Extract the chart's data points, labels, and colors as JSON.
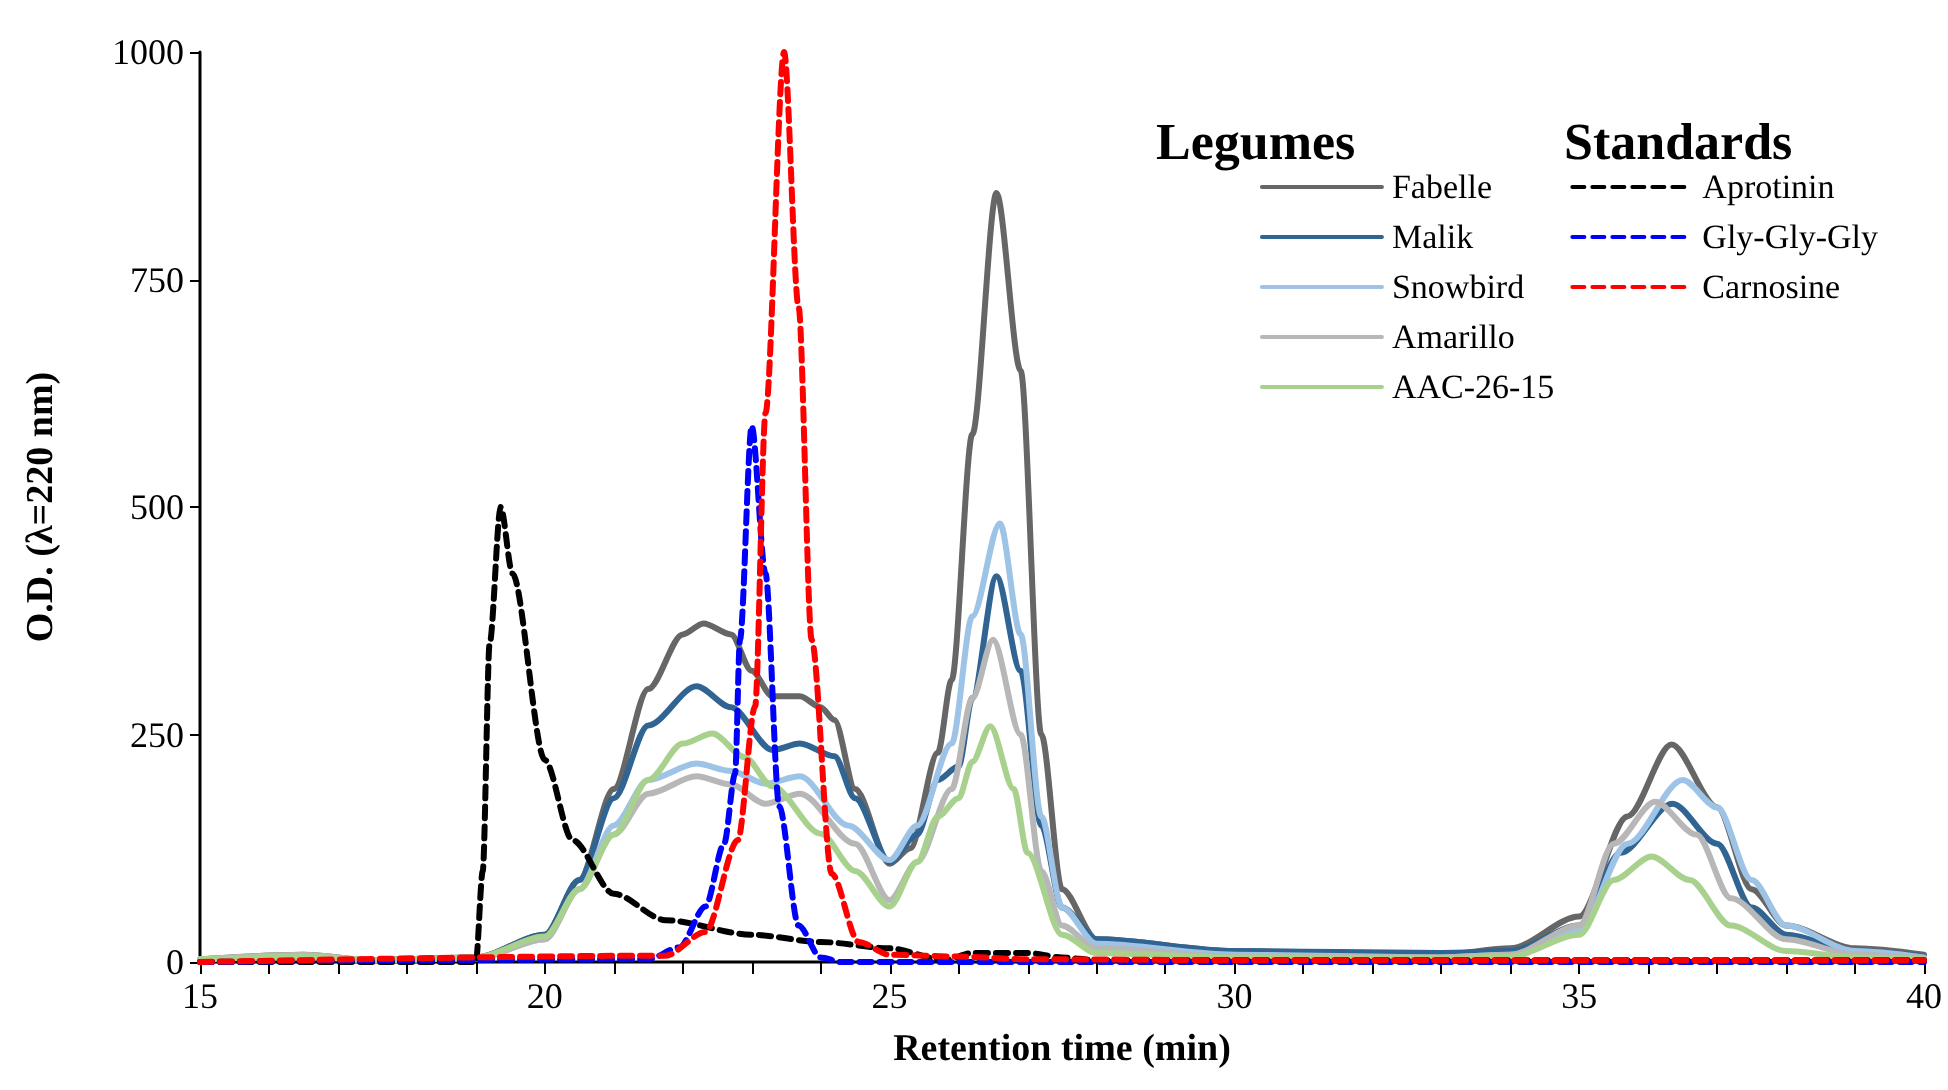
{
  "chart_data": {
    "type": "line",
    "xlabel": "Retention time (min)",
    "ylabel": "O.D. (λ=220 nm)",
    "legend_title": "Legumes",
    "annotations": [
      "Standards"
    ],
    "xlim": [
      15,
      40
    ],
    "ylim": [
      0,
      1000
    ],
    "xticks": [
      15,
      {
        "value": 16,
        "label": null
      },
      {
        "value": 17,
        "label": null
      },
      {
        "value": 18,
        "label": null
      },
      {
        "value": 19,
        "label": null
      },
      20,
      {
        "value": 21,
        "label": null
      },
      {
        "value": 22,
        "label": null
      },
      {
        "value": 23,
        "label": null
      },
      {
        "value": 24,
        "label": null
      },
      25,
      {
        "value": 26,
        "label": null
      },
      {
        "value": 27,
        "label": null
      },
      {
        "value": 28,
        "label": null
      },
      {
        "value": 29,
        "label": null
      },
      30,
      {
        "value": 31,
        "label": null
      },
      {
        "value": 32,
        "label": null
      },
      {
        "value": 33,
        "label": null
      },
      {
        "value": 34,
        "label": null
      },
      35,
      {
        "value": 36,
        "label": null
      },
      {
        "value": 37,
        "label": null
      },
      {
        "value": 38,
        "label": null
      },
      {
        "value": 39,
        "label": null
      },
      40
    ],
    "yticks": [
      0,
      250,
      500,
      750,
      1000
    ],
    "grid": false,
    "legend": "top right",
    "marker": "none",
    "series": [
      {
        "name": "Fabelle",
        "color": "#666666",
        "line_style": "solid",
        "x": [
          15,
          16.5,
          17.5,
          19,
          20,
          20.5,
          21,
          21.5,
          22,
          22.3,
          22.7,
          23,
          23.3,
          23.7,
          24,
          24.2,
          24.5,
          25,
          25.3,
          25.7,
          25.9,
          26.2,
          26.55,
          26.9,
          27.2,
          27.5,
          28,
          30,
          33,
          34,
          35,
          35.7,
          36.34,
          37,
          37.5,
          38,
          39,
          40
        ],
        "values": [
          3,
          8,
          2,
          5,
          30,
          90,
          190,
          300,
          360,
          372,
          360,
          320,
          292,
          292,
          280,
          266,
          190,
          108,
          125,
          230,
          310,
          580,
          845,
          650,
          250,
          80,
          25,
          12,
          8,
          15,
          50,
          160,
          239,
          170,
          80,
          40,
          15,
          8
        ]
      },
      {
        "name": "Malik",
        "color": "#2f6493",
        "line_style": "solid",
        "x": [
          15,
          16.5,
          17.5,
          19,
          20,
          20.5,
          21,
          21.5,
          22.2,
          22.7,
          23.3,
          23.7,
          24.2,
          24.5,
          25,
          25.4,
          25.7,
          26,
          26.2,
          26.55,
          26.9,
          27.2,
          27.5,
          28,
          30,
          33,
          34,
          35,
          35.6,
          36.35,
          37,
          37.5,
          38,
          39,
          40
        ],
        "values": [
          3,
          6,
          2,
          5,
          30,
          90,
          180,
          260,
          303,
          280,
          233,
          240,
          226,
          180,
          110,
          140,
          200,
          215,
          290,
          424,
          320,
          150,
          60,
          25,
          12,
          10,
          12,
          40,
          120,
          174,
          130,
          60,
          30,
          12,
          6
        ]
      },
      {
        "name": "Snowbird",
        "color": "#9dc3e6",
        "line_style": "solid",
        "x": [
          15,
          16.5,
          17.5,
          19,
          20,
          20.5,
          21,
          21.5,
          22.2,
          22.7,
          23.2,
          23.7,
          24.4,
          25,
          25.4,
          25.9,
          26.2,
          26.6,
          26.9,
          27.2,
          27.5,
          28,
          30,
          33,
          34,
          35,
          35.7,
          36.5,
          37,
          37.5,
          38,
          39,
          40
        ],
        "values": [
          3,
          6,
          2,
          4,
          25,
          80,
          150,
          200,
          218,
          210,
          196,
          204,
          150,
          112,
          150,
          240,
          380,
          482,
          360,
          160,
          60,
          20,
          8,
          5,
          8,
          35,
          130,
          200,
          170,
          90,
          40,
          12,
          5
        ]
      },
      {
        "name": "Amarillo",
        "color": "#b7b7b7",
        "line_style": "solid",
        "x": [
          15,
          16.5,
          17.5,
          19,
          20,
          20.5,
          21,
          21.5,
          22.2,
          22.7,
          23.2,
          23.7,
          24.5,
          25,
          25.4,
          25.9,
          26.2,
          26.5,
          26.9,
          27.2,
          27.5,
          28,
          30,
          33,
          34,
          35,
          35.5,
          36.1,
          36.7,
          37.2,
          38,
          39,
          40
        ],
        "values": [
          3,
          8,
          2,
          4,
          25,
          80,
          140,
          185,
          204,
          195,
          174,
          185,
          130,
          68,
          110,
          190,
          290,
          354,
          250,
          100,
          40,
          15,
          6,
          5,
          8,
          40,
          130,
          176,
          140,
          70,
          25,
          8,
          4
        ]
      },
      {
        "name": "AAC-26-15",
        "color": "#a9d18e",
        "line_style": "solid",
        "x": [
          15,
          16.5,
          17.5,
          19,
          20,
          20.5,
          21,
          21.5,
          22,
          22.43,
          22.9,
          23.3,
          24,
          24.5,
          25,
          25.4,
          25.7,
          26,
          26.2,
          26.46,
          26.8,
          27,
          27.5,
          28,
          30,
          33,
          34,
          35,
          35.5,
          36.05,
          36.6,
          37.2,
          38,
          39,
          40
        ],
        "values": [
          3,
          6,
          2,
          5,
          28,
          80,
          140,
          200,
          240,
          251,
          225,
          193,
          141,
          100,
          61,
          110,
          160,
          180,
          220,
          259,
          190,
          120,
          30,
          10,
          5,
          4,
          6,
          30,
          90,
          116,
          90,
          40,
          12,
          5,
          3
        ]
      },
      {
        "name": "Aprotinin",
        "color": "#000000",
        "line_style": "dashed",
        "x": [
          15,
          19,
          19.1,
          19.2,
          19.36,
          19.53,
          20,
          20.4,
          21,
          21.75,
          23,
          24,
          25,
          25.8,
          26.2,
          27,
          27.5,
          28,
          30,
          35,
          40
        ],
        "values": [
          0,
          0,
          100,
          350,
          500,
          427,
          222,
          134,
          75,
          46,
          30,
          22,
          15,
          2,
          10,
          10,
          5,
          2,
          2,
          2,
          2
        ]
      },
      {
        "name": "Gly-Gly-Gly",
        "color": "#0000ff",
        "line_style": "dashed",
        "x": [
          15,
          21.5,
          21.95,
          22.33,
          22.6,
          22.76,
          22.83,
          23,
          23.2,
          23.4,
          23.68,
          24,
          24.3,
          30,
          40
        ],
        "values": [
          0,
          3,
          16,
          61,
          130,
          207,
          354,
          589,
          427,
          171,
          40,
          5,
          0,
          0,
          0
        ]
      },
      {
        "name": "Carnosine",
        "color": "#ff0000",
        "line_style": "dashed",
        "x": [
          15,
          21.75,
          22.33,
          22.8,
          23.05,
          23.2,
          23.47,
          23.68,
          23.87,
          24.16,
          24.55,
          25,
          26,
          27,
          30,
          40
        ],
        "values": [
          0,
          7,
          33,
          134,
          281,
          603,
          1000,
          720,
          354,
          97,
          22,
          8,
          6,
          3,
          2,
          2
        ]
      }
    ]
  }
}
